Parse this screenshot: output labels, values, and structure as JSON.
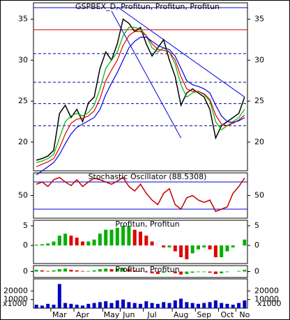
{
  "chart_data": [
    {
      "type": "line",
      "title": "GSPBEX_D, Profitun, Profitun, Profitun",
      "ylim": [
        16.5,
        37
      ],
      "yticks": [
        20,
        25,
        30,
        35
      ],
      "hlines": [
        {
          "value": 36.4,
          "color": "#0000e0",
          "dash": false
        },
        {
          "value": 33.7,
          "color": "#e00000",
          "dash": false
        },
        {
          "value": 30.8,
          "color": "#0000a0",
          "dash": true
        },
        {
          "value": 27.3,
          "color": "#0000a0",
          "dash": true
        },
        {
          "value": 24.7,
          "color": "#0000a0",
          "dash": true
        },
        {
          "value": 22.0,
          "color": "#0000a0",
          "dash": true
        }
      ],
      "trendlines": [
        {
          "start": [
            14,
            36.5
          ],
          "end": [
            36,
            25.5
          ],
          "color": "#0000e0"
        },
        {
          "start": [
            13,
            36
          ],
          "end": [
            25,
            20.5
          ],
          "color": "#0000e0"
        }
      ],
      "series": [
        {
          "name": "Close",
          "color": "#000000",
          "values": [
            17.8,
            18.0,
            18.3,
            19.0,
            23.5,
            24.5,
            23.0,
            24.0,
            22.5,
            24.8,
            25.5,
            29.0,
            31.0,
            30.0,
            32.0,
            35.0,
            34.5,
            33.5,
            34.0,
            32.0,
            30.5,
            31.5,
            32.5,
            30.0,
            28.0,
            24.5,
            26.0,
            26.5,
            26.0,
            25.5,
            24.0,
            20.5,
            22.0,
            22.5,
            23.0,
            23.5,
            25.5
          ]
        },
        {
          "name": "Fast",
          "color": "#00b000",
          "values": [
            17.5,
            17.7,
            18.0,
            18.5,
            20.5,
            22.5,
            23.2,
            23.5,
            23.2,
            23.6,
            24.5,
            26.5,
            29.0,
            30.0,
            31.0,
            33.0,
            34.0,
            34.0,
            33.8,
            33.0,
            31.5,
            31.0,
            31.5,
            31.0,
            29.5,
            27.0,
            25.5,
            26.0,
            26.2,
            25.8,
            25.0,
            22.5,
            21.5,
            22.0,
            22.5,
            23.0,
            24.0
          ]
        },
        {
          "name": "Mid",
          "color": "#e00000",
          "values": [
            17.0,
            17.3,
            17.6,
            18.0,
            19.3,
            21.0,
            22.3,
            22.8,
            22.9,
            23.2,
            23.8,
            25.3,
            27.5,
            28.8,
            30.0,
            31.8,
            33.0,
            33.5,
            33.5,
            33.0,
            32.0,
            31.3,
            31.2,
            31.0,
            30.0,
            28.0,
            26.5,
            26.2,
            26.2,
            25.9,
            25.2,
            23.3,
            22.2,
            22.0,
            22.3,
            22.7,
            23.3
          ]
        },
        {
          "name": "Slow",
          "color": "#0000e0",
          "values": [
            16.0,
            16.5,
            17.0,
            17.5,
            18.5,
            19.8,
            21.0,
            21.8,
            22.2,
            22.6,
            23.0,
            24.0,
            25.8,
            27.2,
            28.5,
            30.0,
            31.5,
            32.3,
            32.8,
            32.8,
            32.3,
            31.8,
            31.5,
            31.3,
            30.5,
            29.0,
            27.5,
            27.0,
            26.8,
            26.5,
            26.0,
            24.5,
            23.2,
            22.5,
            22.4,
            22.6,
            23.0
          ]
        }
      ]
    },
    {
      "type": "line",
      "title": "Stochastic Oscillator (88.5308)",
      "ylim": [
        0,
        100
      ],
      "yticks": [
        50
      ],
      "hlines": [
        {
          "value": 80,
          "color": "#0000e0",
          "dash": false
        },
        {
          "value": 20,
          "color": "#0000e0",
          "dash": false
        }
      ],
      "series": [
        {
          "name": "Stochastic",
          "color": "#c00000",
          "values": [
            75,
            80,
            70,
            85,
            90,
            80,
            72,
            85,
            70,
            80,
            88,
            85,
            80,
            75,
            82,
            90,
            70,
            60,
            75,
            55,
            40,
            30,
            55,
            65,
            30,
            20,
            45,
            50,
            40,
            35,
            40,
            15,
            20,
            25,
            55,
            70,
            88.5308
          ]
        }
      ]
    },
    {
      "type": "bar",
      "title": "Profitun, Profitun",
      "ylim": [
        -4.6,
        6.4
      ],
      "yticks": [
        0,
        5
      ],
      "up_color": "#00b000",
      "down_color": "#e00000",
      "series": [
        {
          "name": "Histogram",
          "values": [
            0.2,
            0.3,
            0.5,
            1,
            2.5,
            3,
            2.5,
            2,
            1,
            1,
            1.5,
            3,
            4,
            4,
            4.5,
            5,
            5,
            4,
            3.5,
            2.5,
            1,
            0,
            -0.5,
            -0.5,
            -1.5,
            -3,
            -3.5,
            -2,
            -1,
            -0.5,
            -1,
            -3,
            -3,
            -1.5,
            -0.5,
            0,
            1.5
          ]
        }
      ]
    },
    {
      "type": "bar",
      "title": "Profitun, Profitun",
      "ylim": [
        -1,
        1
      ],
      "yticks": [
        0
      ],
      "up_color": "#00b000",
      "down_color": "#e00000",
      "series": [
        {
          "name": "Histogram",
          "values": [
            0.3,
            0.2,
            0.1,
            0.2,
            0.4,
            0.5,
            0.3,
            0.2,
            0.1,
            0.1,
            0.2,
            0.4,
            0.5,
            0.4,
            0.5,
            0.6,
            0.4,
            0.2,
            0.1,
            -0.1,
            -0.3,
            -0.4,
            -0.2,
            -0.1,
            -0.3,
            -0.5,
            -0.4,
            -0.2,
            -0.1,
            -0.1,
            -0.2,
            -0.4,
            -0.3,
            -0.1,
            0,
            0.1,
            0.3
          ]
        }
      ]
    },
    {
      "type": "bar",
      "annotation": "x1000",
      "ylim": [
        0,
        34000
      ],
      "yticks": [
        10000,
        20000
      ],
      "categories": [
        null,
        null,
        null,
        null,
        "Mar",
        null,
        null,
        null,
        "Apr",
        null,
        null,
        null,
        null,
        "May",
        null,
        null,
        "Jun",
        null,
        null,
        null,
        "Jul",
        null,
        null,
        null,
        null,
        "Aug",
        null,
        null,
        null,
        "Sep",
        null,
        null,
        null,
        "Oct",
        null,
        null,
        "No"
      ],
      "series": [
        {
          "name": "Volume",
          "color": "#0000c0",
          "values": [
            4000,
            3000,
            5000,
            4000,
            28000,
            6000,
            5000,
            4000,
            3000,
            5000,
            6000,
            7000,
            8000,
            6000,
            9000,
            10000,
            7000,
            6000,
            5000,
            8000,
            6000,
            5000,
            7000,
            6000,
            9000,
            11000,
            7000,
            6000,
            5000,
            6000,
            7000,
            9000,
            6000,
            5000,
            4000,
            6000,
            9000
          ]
        }
      ]
    }
  ]
}
